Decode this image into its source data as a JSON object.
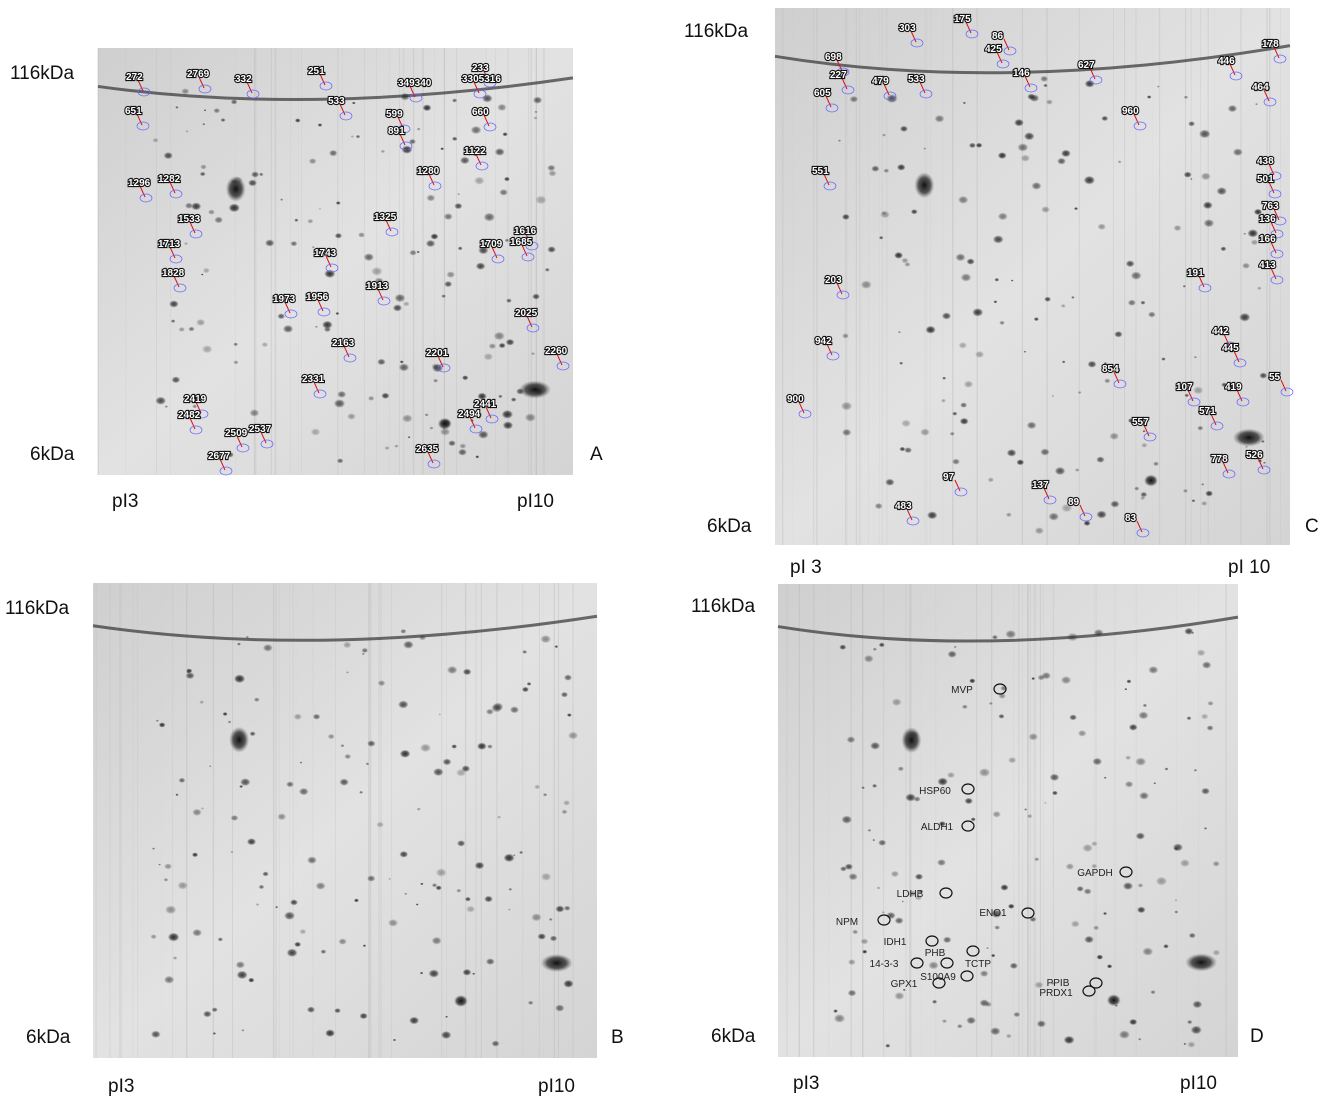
{
  "panels": [
    {
      "letter": "A",
      "mw_top": "116kDa",
      "mw_bottom": "6kDa",
      "pi_left": "pI3",
      "pi_right": "pI10",
      "spots": [
        "272",
        "2769",
        "332",
        "251",
        "233",
        "349340",
        "3305316",
        "651",
        "533",
        "599",
        "660",
        "891",
        "1122",
        "1296",
        "1282",
        "1533",
        "1713",
        "1828",
        "1743",
        "1616",
        "1685",
        "1709",
        "1913",
        "1956",
        "1973",
        "2025",
        "2260",
        "2163",
        "2201",
        "2331",
        "2419",
        "2441",
        "2494",
        "2482",
        "2509",
        "2537",
        "2635",
        "2677",
        "1325",
        "1280"
      ]
    },
    {
      "letter": "B",
      "mw_top": "116kDa",
      "mw_bottom": "6kDa",
      "pi_left": "pI3",
      "pi_right": "pI10"
    },
    {
      "letter": "C",
      "mw_top": "116kDa",
      "mw_bottom": "6kDa",
      "pi_left": "pI 3",
      "pi_right": "pI 10",
      "spots": [
        "303",
        "175",
        "86",
        "425",
        "178",
        "446",
        "698",
        "227",
        "479",
        "533",
        "146",
        "627",
        "464",
        "605",
        "960",
        "551",
        "438",
        "501",
        "763",
        "136",
        "166",
        "413",
        "191",
        "203",
        "942",
        "442",
        "445",
        "55",
        "107",
        "419",
        "900",
        "571",
        "557",
        "526",
        "778",
        "137",
        "89",
        "83",
        "483",
        "97",
        "854"
      ]
    },
    {
      "letter": "D",
      "mw_top": "116kDa",
      "mw_bottom": "6kDa",
      "pi_left": "pI3",
      "pi_right": "pI10",
      "proteins": [
        "MVP",
        "HSP60",
        "ALDH1",
        "GAPDH",
        "LDHB",
        "ENO1",
        "NPM",
        "IDH1",
        "PHB",
        "14-3-3",
        "TCTP",
        "S100A9",
        "GPX1",
        "PPIB",
        "PRDX1"
      ]
    }
  ]
}
